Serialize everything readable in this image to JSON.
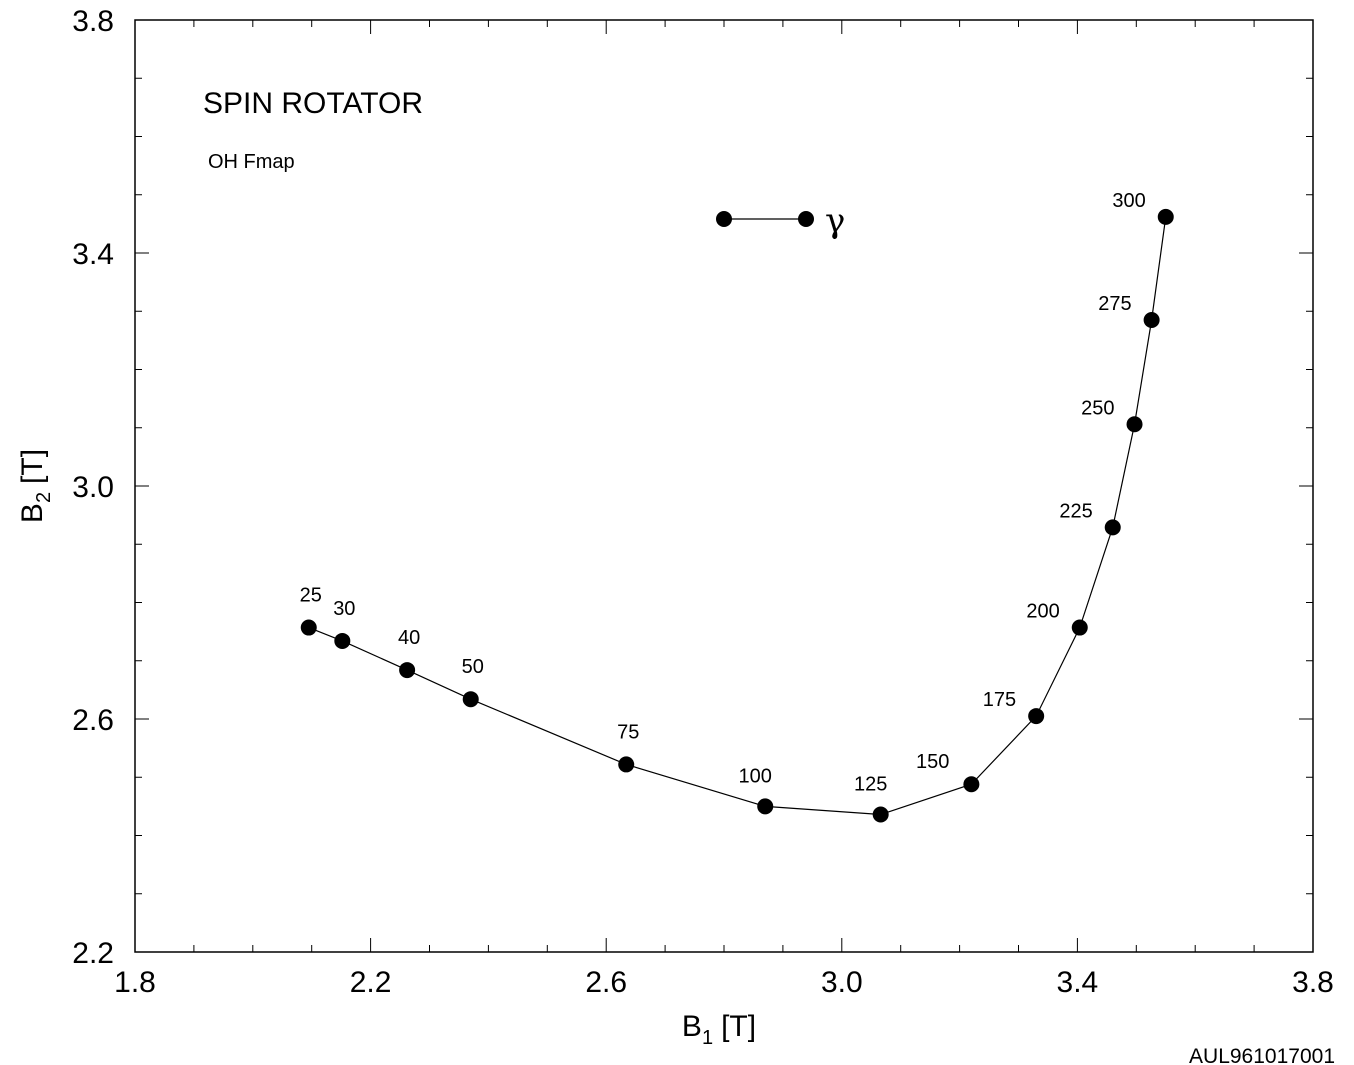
{
  "chart_data": {
    "type": "line",
    "title": "SPIN ROTATOR",
    "subtitle": "OH Fmap",
    "xlabel": {
      "main": "B",
      "sub": "1",
      "unit": "[T]"
    },
    "ylabel": {
      "main": "B",
      "sub": "2",
      "unit": "[T]"
    },
    "xlim": [
      1.8,
      3.8
    ],
    "ylim": [
      2.2,
      3.8
    ],
    "xticks": [
      "1.8",
      "2.2",
      "2.6",
      "3.0",
      "3.4",
      "3.8"
    ],
    "yticks": [
      "2.2",
      "2.6",
      "3.0",
      "3.4",
      "3.8"
    ],
    "grid": false,
    "legend": {
      "label": "γ",
      "position": "top-center"
    },
    "series": [
      {
        "name": "γ",
        "marker": "filled-circle",
        "color": "#000000",
        "points": [
          {
            "label": "25",
            "x": 2.095,
            "y": 2.757
          },
          {
            "label": "30",
            "x": 2.152,
            "y": 2.734
          },
          {
            "label": "40",
            "x": 2.262,
            "y": 2.684
          },
          {
            "label": "50",
            "x": 2.37,
            "y": 2.634
          },
          {
            "label": "75",
            "x": 2.634,
            "y": 2.522
          },
          {
            "label": "100",
            "x": 2.87,
            "y": 2.45
          },
          {
            "label": "125",
            "x": 3.066,
            "y": 2.436
          },
          {
            "label": "150",
            "x": 3.22,
            "y": 2.488
          },
          {
            "label": "175",
            "x": 3.33,
            "y": 2.605
          },
          {
            "label": "200",
            "x": 3.404,
            "y": 2.757
          },
          {
            "label": "225",
            "x": 3.46,
            "y": 2.929
          },
          {
            "label": "250",
            "x": 3.497,
            "y": 3.106
          },
          {
            "label": "275",
            "x": 3.526,
            "y": 3.285
          },
          {
            "label": "300",
            "x": 3.55,
            "y": 3.462
          }
        ]
      }
    ]
  },
  "footer": {
    "id": "AUL961017001"
  }
}
